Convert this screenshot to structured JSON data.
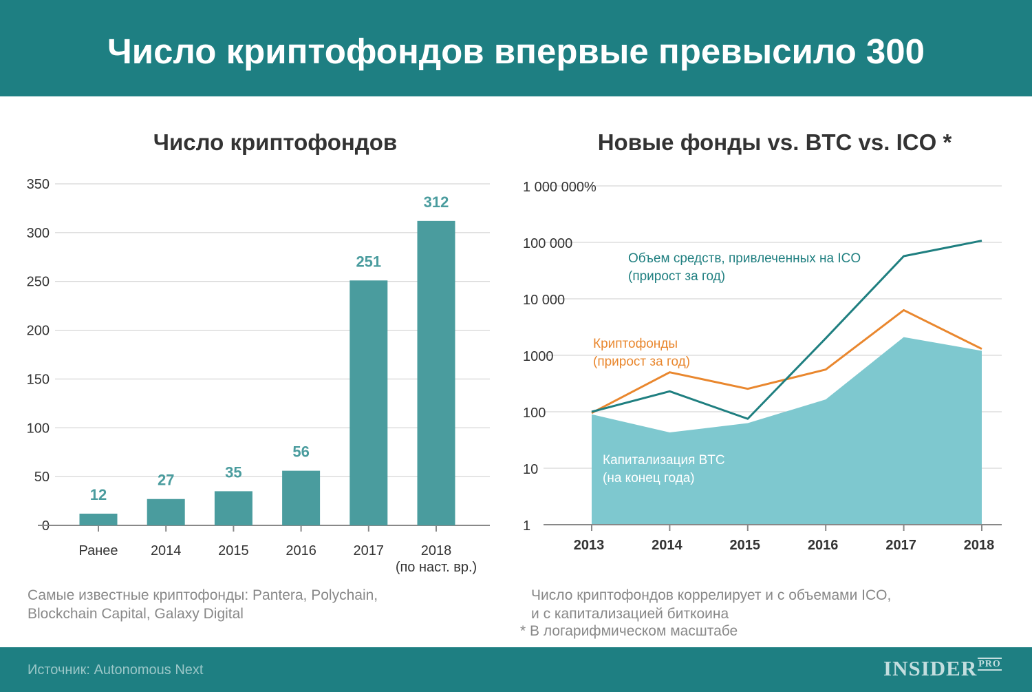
{
  "header": {
    "title": "Число криптофондов впервые превысило 300"
  },
  "chart_data": [
    {
      "type": "bar",
      "title": "Число криптофондов",
      "categories": [
        "Ранее",
        "2014",
        "2015",
        "2016",
        "2017",
        "2018"
      ],
      "category_sublabels": [
        "",
        "",
        "",
        "",
        "",
        "(по наст. вр.)"
      ],
      "values": [
        12,
        27,
        35,
        56,
        251,
        312
      ],
      "yticks": [
        0,
        50,
        100,
        150,
        200,
        250,
        300,
        350
      ],
      "ylim": [
        0,
        350
      ],
      "grid": true,
      "colors": {
        "bar": "#4a9c9e",
        "label": "#4a9c9e"
      }
    },
    {
      "type": "line",
      "title": "Новые фонды vs. BTC vs. ICO *",
      "y_scale": "log",
      "x": [
        "2013",
        "2014",
        "2015",
        "2016",
        "2017",
        "2018"
      ],
      "ylim": [
        1,
        1000000
      ],
      "ytick_labels": [
        "1",
        "10",
        "100",
        "1000",
        "10 000",
        "100 000",
        "1 000 000%"
      ],
      "grid": true,
      "series": [
        {
          "kind": "area",
          "label_lines": [
            "Капитализация BTC",
            "(на конец года)"
          ],
          "values": [
            90,
            43,
            63,
            165,
            2100,
            1200
          ],
          "color": "#7ec8cf"
        },
        {
          "kind": "line",
          "label_lines": [
            "Криптофонды",
            "(прирост за год)"
          ],
          "values": [
            95,
            500,
            255,
            560,
            6300,
            1300
          ],
          "color": "#e9872e"
        },
        {
          "kind": "line",
          "label_lines": [
            "Объем средств, привлеченных на ICO",
            "(прирост за год)"
          ],
          "values": [
            100,
            230,
            75,
            2000,
            57000,
            107000
          ],
          "color": "#1f7f80"
        }
      ]
    }
  ],
  "notes": {
    "left": [
      "Самые известные криптофонды: Pantera, Polychain,",
      "Blockchain Capital, Galaxy Digital"
    ],
    "right": [
      "Число криптофондов коррелирует и с объемами ICO,",
      "и с капитализацией биткоина"
    ],
    "right_footnote": "* В логарифмическом масштабе"
  },
  "footer": {
    "source": "Источник: Autonomous Next",
    "logo": "INSIDER",
    "logo_suffix": "PRO"
  },
  "colors": {
    "header_bg": "#1e7f82",
    "grid": "#cccccc",
    "axis": "#888888",
    "text": "#333333"
  }
}
